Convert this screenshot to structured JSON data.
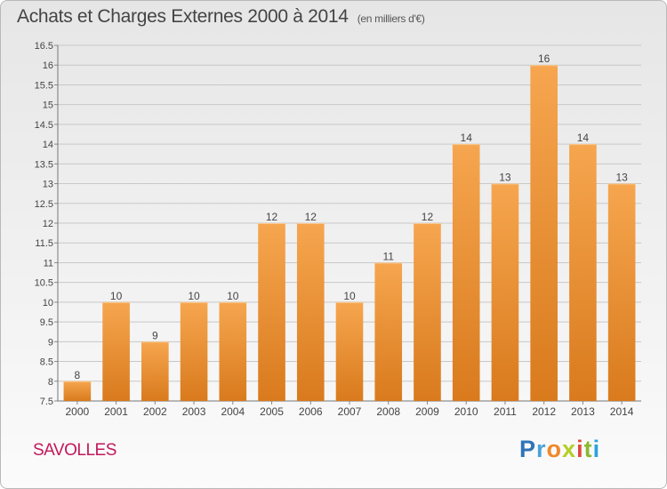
{
  "header": {
    "title": "Achats et Charges Externes 2000 à 2014",
    "subtitle": "(en milliers d'€)"
  },
  "footer": {
    "location": "SAVOLLES",
    "logo_text": "Proxiti"
  },
  "colors": {
    "bar_light": "#f6a64f",
    "bar_dark": "#d97a1d",
    "grid": "#c8c8c8",
    "logo_letters": [
      "#2f73b9",
      "#4aa2d8",
      "#f1872a",
      "#b5ce28",
      "#e0483b",
      "#8ab832",
      "#29a3dd"
    ]
  },
  "chart_data": {
    "type": "bar",
    "title": "Achats et Charges Externes 2000 à 2014",
    "xlabel": "",
    "ylabel": "",
    "categories": [
      "2000",
      "2001",
      "2002",
      "2003",
      "2004",
      "2005",
      "2006",
      "2007",
      "2008",
      "2009",
      "2010",
      "2011",
      "2012",
      "2013",
      "2014"
    ],
    "values": [
      8,
      10,
      9,
      10,
      10,
      12,
      12,
      10,
      11,
      12,
      14,
      13,
      16,
      14,
      13
    ],
    "data_labels": [
      "8",
      "10",
      "9",
      "10",
      "10",
      "12",
      "12",
      "10",
      "11",
      "12",
      "14",
      "13",
      "16",
      "14",
      "13"
    ],
    "ylim": [
      7.5,
      16.5
    ],
    "yticks": [
      7.5,
      8,
      8.5,
      9,
      9.5,
      10,
      10.5,
      11,
      11.5,
      12,
      12.5,
      13,
      13.5,
      14,
      14.5,
      15,
      15.5,
      16,
      16.5
    ],
    "ytick_labels": [
      "7.5",
      "8",
      "8.5",
      "9",
      "9.5",
      "10",
      "10.5",
      "11",
      "11.5",
      "12",
      "12.5",
      "13",
      "13.5",
      "14",
      "14.5",
      "15",
      "15.5",
      "16",
      "16.5"
    ],
    "grid": true
  }
}
